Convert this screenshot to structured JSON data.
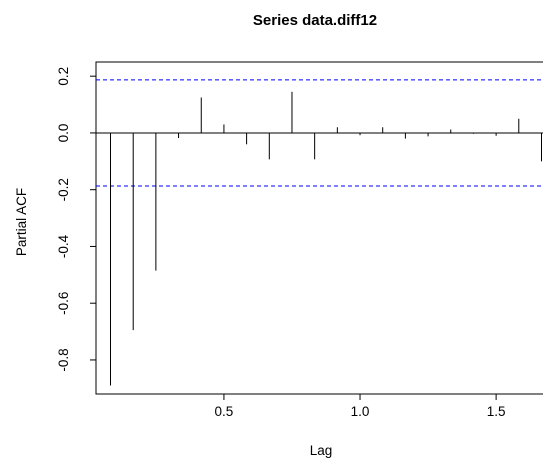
{
  "chart_data": {
    "type": "bar",
    "title": "Series  data.diff12",
    "xlabel": "Lag",
    "ylabel": "Partial ACF",
    "x_ticks": [
      0.5,
      1.0,
      1.5
    ],
    "x_tick_labels": [
      "0.5",
      "1.0",
      "1.5"
    ],
    "y_ticks": [
      -0.8,
      -0.6,
      -0.4,
      -0.2,
      0.0,
      0.2
    ],
    "y_tick_labels": [
      "-0.8",
      "-0.6",
      "-0.4",
      "-0.2",
      "0.0",
      "0.2"
    ],
    "xlim": [
      0.03,
      1.72
    ],
    "ylim": [
      -0.92,
      0.25
    ],
    "confidence_bound": 0.187,
    "confidence_color": "#0000ff",
    "bar_color": "#000000",
    "lags": [
      0.0833,
      0.1667,
      0.25,
      0.3333,
      0.4167,
      0.5,
      0.5833,
      0.6667,
      0.75,
      0.8333,
      0.9167,
      1.0,
      1.0833,
      1.1667,
      1.25,
      1.3333,
      1.4167,
      1.5,
      1.5833,
      1.6667
    ],
    "values": [
      -0.89,
      -0.695,
      -0.485,
      -0.018,
      0.125,
      0.03,
      -0.04,
      -0.093,
      0.145,
      -0.093,
      0.02,
      -0.008,
      0.02,
      -0.02,
      -0.012,
      0.012,
      -0.003,
      -0.01,
      0.05,
      -0.1
    ]
  }
}
